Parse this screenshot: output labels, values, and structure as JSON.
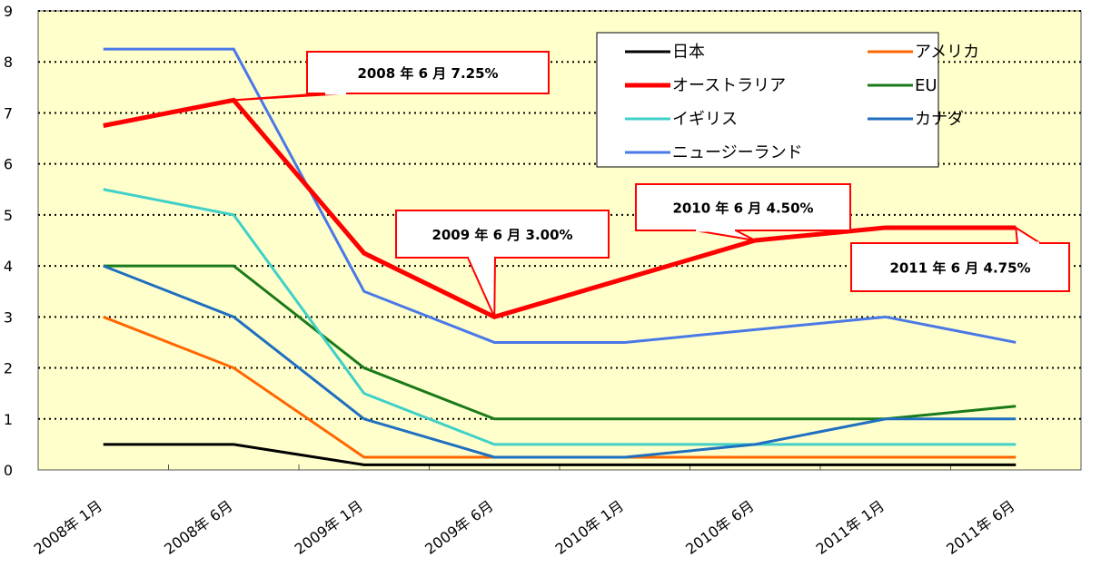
{
  "chart_data": {
    "type": "line",
    "categories": [
      "2008年 1月",
      "2008年 6月",
      "2009年 1月",
      "2009年 6月",
      "2010年 1月",
      "2010年 6月",
      "2011年 1月",
      "2011年 6月"
    ],
    "ylim": [
      0,
      9
    ],
    "yticks": [
      "0",
      "1",
      "2",
      "3",
      "4",
      "5",
      "6",
      "7",
      "8",
      "9"
    ],
    "grid": "horizontal-dotted",
    "legend_position": "top-right",
    "series": [
      {
        "name": "日本",
        "color": "#000000",
        "width": 3,
        "values": [
          0.5,
          0.5,
          0.1,
          0.1,
          0.1,
          0.1,
          0.1,
          0.1
        ]
      },
      {
        "name": "アメリカ",
        "color": "#ff6600",
        "width": 3,
        "values": [
          3.0,
          2.0,
          0.25,
          0.25,
          0.25,
          0.25,
          0.25,
          0.25
        ]
      },
      {
        "name": "オーストラリア",
        "color": "#ff0000",
        "width": 5,
        "values": [
          6.75,
          7.25,
          4.25,
          3.0,
          3.75,
          4.5,
          4.75,
          4.75
        ]
      },
      {
        "name": "EU",
        "color": "#1a7a1a",
        "width": 3,
        "values": [
          4.0,
          4.0,
          2.0,
          1.0,
          1.0,
          1.0,
          1.0,
          1.25
        ]
      },
      {
        "name": "イギリス",
        "color": "#40d0c8",
        "width": 3,
        "values": [
          5.5,
          5.0,
          1.5,
          0.5,
          0.5,
          0.5,
          0.5,
          0.5
        ]
      },
      {
        "name": "カナダ",
        "color": "#1f6fc0",
        "width": 3,
        "values": [
          4.0,
          3.0,
          1.0,
          0.25,
          0.25,
          0.5,
          1.0,
          1.0
        ]
      },
      {
        "name": "ニュージーランド",
        "color": "#4a78e6",
        "width": 3,
        "values": [
          8.25,
          8.25,
          3.5,
          2.5,
          2.5,
          2.75,
          3.0,
          2.5
        ]
      }
    ],
    "annotations": [
      {
        "text": "2008 年 6 月   7.25%",
        "series": "オーストラリア",
        "category_index": 1
      },
      {
        "text": "2009 年 6 月   3.00%",
        "series": "オーストラリア",
        "category_index": 3
      },
      {
        "text": "2010 年 6 月   4.50%",
        "series": "オーストラリア",
        "category_index": 5
      },
      {
        "text": "2011 年 6 月   4.75%",
        "series": "オーストラリア",
        "category_index": 7
      }
    ]
  },
  "colors": {
    "plot_background": "#ffffcc",
    "callout_border": "#ff0000",
    "callout_fill": "#ffffff"
  }
}
